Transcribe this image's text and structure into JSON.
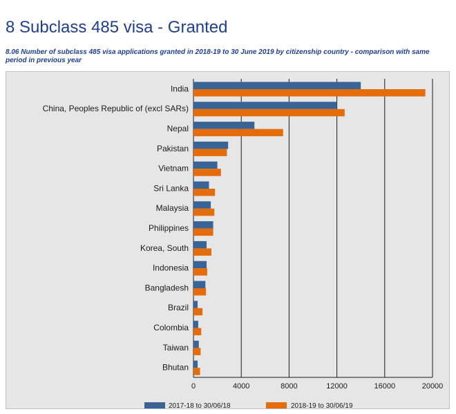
{
  "header": {
    "title": "8 Subclass 485 visa - Granted",
    "subtitle": "8.06 Number of subclass 485 visa applications granted in 2018-19 to 30 June 2019 by citizenship country - comparison with same period in previous year"
  },
  "chart_data": {
    "type": "bar",
    "orientation": "horizontal",
    "title": "8.06 Number of subclass 485 visa applications granted in 2018-19 to 30 June 2019 by citizenship country - comparison with same period in previous year",
    "xlabel": "",
    "ylabel": "",
    "xlim": [
      0,
      20000
    ],
    "xticks": [
      0,
      4000,
      8000,
      12000,
      16000,
      20000
    ],
    "grid": true,
    "legend_position": "bottom",
    "categories": [
      "India",
      "China, Peoples Republic of (excl SARs)",
      "Nepal",
      "Pakistan",
      "Vietnam",
      "Sri Lanka",
      "Malaysia",
      "Philippines",
      "Korea, South",
      "Indonesia",
      "Bangladesh",
      "Brazil",
      "Colombia",
      "Taiwan",
      "Bhutan"
    ],
    "series": [
      {
        "name": "2017-18 to 30/06/18",
        "color": "#3a6496",
        "values": [
          14000,
          12000,
          5100,
          2900,
          2000,
          1300,
          1450,
          1650,
          1100,
          1100,
          1000,
          350,
          400,
          450,
          350
        ]
      },
      {
        "name": "2018-19 to 30/06/19",
        "color": "#e46c0a",
        "values": [
          19400,
          12650,
          7500,
          2800,
          2300,
          1800,
          1750,
          1650,
          1500,
          1150,
          1050,
          750,
          650,
          600,
          550
        ]
      }
    ]
  }
}
